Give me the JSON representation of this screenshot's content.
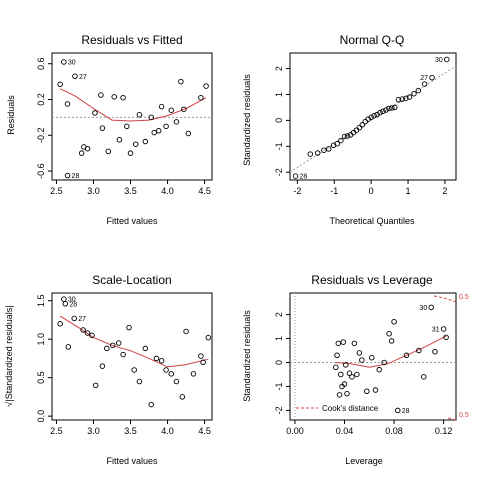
{
  "chart_data": [
    {
      "type": "scatter",
      "title": "Residuals vs Fitted",
      "xlabel": "Fitted values",
      "ylabel": "Residuals",
      "xlim": [
        2.44,
        4.6
      ],
      "ylim": [
        -0.7,
        0.72
      ],
      "xticks": [
        2.5,
        3.0,
        3.5,
        4.0,
        4.5
      ],
      "xtick_labels": [
        "2.5",
        "3.0",
        "3.5",
        "4.0",
        "4.5"
      ],
      "yticks": [
        -0.6,
        -0.2,
        0.2,
        0.6
      ],
      "ytick_labels": [
        "-0.6",
        "-0.2",
        "0.2",
        "0.6"
      ],
      "ref_line": 0,
      "points": [
        {
          "x": 2.55,
          "y": 0.37
        },
        {
          "x": 2.6,
          "y": 0.62,
          "label": "30"
        },
        {
          "x": 2.65,
          "y": 0.15
        },
        {
          "x": 2.65,
          "y": -0.65,
          "label": "28"
        },
        {
          "x": 2.75,
          "y": 0.46,
          "label": "27"
        },
        {
          "x": 2.84,
          "y": -0.4
        },
        {
          "x": 2.87,
          "y": -0.33
        },
        {
          "x": 2.92,
          "y": -0.35
        },
        {
          "x": 3.02,
          "y": 0.05
        },
        {
          "x": 3.1,
          "y": 0.25
        },
        {
          "x": 3.12,
          "y": -0.12
        },
        {
          "x": 3.2,
          "y": -0.38
        },
        {
          "x": 3.28,
          "y": 0.23
        },
        {
          "x": 3.35,
          "y": -0.25
        },
        {
          "x": 3.4,
          "y": 0.22
        },
        {
          "x": 3.45,
          "y": -0.1
        },
        {
          "x": 3.5,
          "y": -0.4
        },
        {
          "x": 3.57,
          "y": -0.3
        },
        {
          "x": 3.62,
          "y": 0.03
        },
        {
          "x": 3.7,
          "y": -0.27
        },
        {
          "x": 3.78,
          "y": 0.0
        },
        {
          "x": 3.82,
          "y": -0.17
        },
        {
          "x": 3.88,
          "y": -0.15
        },
        {
          "x": 3.92,
          "y": 0.12
        },
        {
          "x": 3.98,
          "y": -0.1
        },
        {
          "x": 4.05,
          "y": 0.08
        },
        {
          "x": 4.12,
          "y": -0.05
        },
        {
          "x": 4.18,
          "y": 0.4
        },
        {
          "x": 4.22,
          "y": 0.09
        },
        {
          "x": 4.28,
          "y": -0.18
        },
        {
          "x": 4.45,
          "y": 0.22
        },
        {
          "x": 4.52,
          "y": 0.35
        }
      ],
      "smooth": [
        [
          2.55,
          0.32
        ],
        [
          2.75,
          0.24
        ],
        [
          3.0,
          0.1
        ],
        [
          3.25,
          -0.03
        ],
        [
          3.5,
          -0.04
        ],
        [
          3.75,
          -0.03
        ],
        [
          4.0,
          0.02
        ],
        [
          4.25,
          0.1
        ],
        [
          4.52,
          0.22
        ]
      ]
    },
    {
      "type": "scatter",
      "title": "Normal Q-Q",
      "xlabel": "Theoretical Quantiles",
      "ylabel": "Standardized residuals",
      "xlim": [
        -2.2,
        2.3
      ],
      "ylim": [
        -2.3,
        2.6
      ],
      "xticks": [
        -2,
        -1,
        0,
        1,
        2
      ],
      "xtick_labels": [
        "-2",
        "-1",
        "0",
        "1",
        "2"
      ],
      "yticks": [
        -2,
        -1,
        0,
        1,
        2
      ],
      "ytick_labels": [
        "-2",
        "-1",
        "0",
        "1",
        "2"
      ],
      "ref_line_points": [
        [
          -2.2,
          -2.0
        ],
        [
          2.3,
          2.1
        ]
      ],
      "points": [
        {
          "x": -2.05,
          "y": -2.15,
          "label": "28"
        },
        {
          "x": -1.65,
          "y": -1.3
        },
        {
          "x": -1.45,
          "y": -1.26
        },
        {
          "x": -1.28,
          "y": -1.15
        },
        {
          "x": -1.15,
          "y": -1.1
        },
        {
          "x": -1.02,
          "y": -0.96
        },
        {
          "x": -0.92,
          "y": -0.9
        },
        {
          "x": -0.82,
          "y": -0.78
        },
        {
          "x": -0.72,
          "y": -0.62
        },
        {
          "x": -0.64,
          "y": -0.6
        },
        {
          "x": -0.56,
          "y": -0.56
        },
        {
          "x": -0.48,
          "y": -0.47
        },
        {
          "x": -0.4,
          "y": -0.38
        },
        {
          "x": -0.32,
          "y": -0.28
        },
        {
          "x": -0.24,
          "y": -0.17
        },
        {
          "x": -0.16,
          "y": -0.05
        },
        {
          "x": -0.08,
          "y": 0.05
        },
        {
          "x": 0.0,
          "y": 0.12
        },
        {
          "x": 0.08,
          "y": 0.18
        },
        {
          "x": 0.16,
          "y": 0.22
        },
        {
          "x": 0.24,
          "y": 0.3
        },
        {
          "x": 0.32,
          "y": 0.35
        },
        {
          "x": 0.4,
          "y": 0.4
        },
        {
          "x": 0.48,
          "y": 0.46
        },
        {
          "x": 0.56,
          "y": 0.48
        },
        {
          "x": 0.64,
          "y": 0.5
        },
        {
          "x": 0.74,
          "y": 0.8
        },
        {
          "x": 0.84,
          "y": 0.82
        },
        {
          "x": 0.94,
          "y": 0.85
        },
        {
          "x": 1.04,
          "y": 0.9
        },
        {
          "x": 1.16,
          "y": 1.03
        },
        {
          "x": 1.28,
          "y": 1.15
        },
        {
          "x": 1.45,
          "y": 1.4
        },
        {
          "x": 1.65,
          "y": 1.65,
          "label": "27"
        },
        {
          "x": 2.05,
          "y": 2.35,
          "label": "30"
        }
      ]
    },
    {
      "type": "scatter",
      "title": "Scale-Location",
      "xlabel": "Fitted values",
      "ylabel": "√|Standardized residuals|",
      "xlim": [
        2.44,
        4.6
      ],
      "ylim": [
        -0.05,
        1.6
      ],
      "xticks": [
        2.5,
        3.0,
        3.5,
        4.0,
        4.5
      ],
      "xtick_labels": [
        "2.5",
        "3.0",
        "3.5",
        "4.0",
        "4.5"
      ],
      "yticks": [
        0.0,
        0.5,
        1.0,
        1.5
      ],
      "ytick_labels": [
        "0.0",
        "0.5",
        "1.0",
        "1.5"
      ],
      "points": [
        {
          "x": 2.55,
          "y": 1.2
        },
        {
          "x": 2.6,
          "y": 1.52,
          "label": "30"
        },
        {
          "x": 2.62,
          "y": 1.46,
          "label": "28"
        },
        {
          "x": 2.66,
          "y": 0.9
        },
        {
          "x": 2.74,
          "y": 1.27,
          "label": "27"
        },
        {
          "x": 2.86,
          "y": 1.12
        },
        {
          "x": 2.92,
          "y": 1.08
        },
        {
          "x": 2.98,
          "y": 1.05
        },
        {
          "x": 3.03,
          "y": 0.4
        },
        {
          "x": 3.12,
          "y": 0.65
        },
        {
          "x": 3.18,
          "y": 0.88
        },
        {
          "x": 3.26,
          "y": 0.92
        },
        {
          "x": 3.34,
          "y": 0.95
        },
        {
          "x": 3.4,
          "y": 0.8
        },
        {
          "x": 3.48,
          "y": 1.15
        },
        {
          "x": 3.55,
          "y": 0.6
        },
        {
          "x": 3.62,
          "y": 0.45
        },
        {
          "x": 3.7,
          "y": 0.88
        },
        {
          "x": 3.78,
          "y": 0.15
        },
        {
          "x": 3.85,
          "y": 0.75
        },
        {
          "x": 3.92,
          "y": 0.72
        },
        {
          "x": 3.98,
          "y": 0.6
        },
        {
          "x": 4.05,
          "y": 0.55
        },
        {
          "x": 4.12,
          "y": 0.45
        },
        {
          "x": 4.2,
          "y": 0.25
        },
        {
          "x": 4.25,
          "y": 1.1
        },
        {
          "x": 4.35,
          "y": 0.55
        },
        {
          "x": 4.45,
          "y": 0.78
        },
        {
          "x": 4.48,
          "y": 0.7
        },
        {
          "x": 4.55,
          "y": 1.02
        }
      ],
      "smooth": [
        [
          2.55,
          1.3
        ],
        [
          2.8,
          1.15
        ],
        [
          3.0,
          1.02
        ],
        [
          3.25,
          0.92
        ],
        [
          3.5,
          0.85
        ],
        [
          3.75,
          0.75
        ],
        [
          4.0,
          0.64
        ],
        [
          4.25,
          0.67
        ],
        [
          4.55,
          0.74
        ]
      ]
    },
    {
      "type": "scatter",
      "title": "Residuals vs Leverage",
      "xlabel": "Leverage",
      "ylabel": "Standardized residuals",
      "xlim": [
        -0.004,
        0.13
      ],
      "ylim": [
        -2.4,
        2.9
      ],
      "xticks": [
        0.0,
        0.04,
        0.08,
        0.12
      ],
      "xtick_labels": [
        "0.00",
        "0.04",
        "0.08",
        "0.12"
      ],
      "yticks": [
        -2,
        -1,
        0,
        1,
        2
      ],
      "ytick_labels": [
        "-2",
        "-1",
        "0",
        "1",
        "2"
      ],
      "ref_line": 0,
      "points": [
        {
          "x": 0.033,
          "y": -0.2
        },
        {
          "x": 0.034,
          "y": 0.3
        },
        {
          "x": 0.035,
          "y": 0.8
        },
        {
          "x": 0.036,
          "y": -1.35
        },
        {
          "x": 0.037,
          "y": -0.5
        },
        {
          "x": 0.038,
          "y": -1.0
        },
        {
          "x": 0.039,
          "y": 0.85
        },
        {
          "x": 0.04,
          "y": -0.9
        },
        {
          "x": 0.041,
          "y": -0.1
        },
        {
          "x": 0.042,
          "y": -1.3
        },
        {
          "x": 0.044,
          "y": -0.45
        },
        {
          "x": 0.046,
          "y": -0.6
        },
        {
          "x": 0.048,
          "y": 0.8
        },
        {
          "x": 0.05,
          "y": -0.5
        },
        {
          "x": 0.052,
          "y": 0.4
        },
        {
          "x": 0.054,
          "y": 0.1
        },
        {
          "x": 0.058,
          "y": -1.2
        },
        {
          "x": 0.062,
          "y": 0.2
        },
        {
          "x": 0.065,
          "y": -1.15
        },
        {
          "x": 0.068,
          "y": -0.3
        },
        {
          "x": 0.072,
          "y": 0.0
        },
        {
          "x": 0.076,
          "y": 1.2
        },
        {
          "x": 0.078,
          "y": 0.9
        },
        {
          "x": 0.08,
          "y": 1.7
        },
        {
          "x": 0.083,
          "y": -2.0,
          "label": "28"
        },
        {
          "x": 0.09,
          "y": 0.3
        },
        {
          "x": 0.1,
          "y": 0.5
        },
        {
          "x": 0.104,
          "y": -0.6
        },
        {
          "x": 0.11,
          "y": 2.3,
          "label": "30"
        },
        {
          "x": 0.113,
          "y": 0.45
        },
        {
          "x": 0.12,
          "y": 1.4,
          "label": "31"
        },
        {
          "x": 0.122,
          "y": 1.05
        }
      ],
      "smooth": [
        [
          0.033,
          0.0
        ],
        [
          0.045,
          -0.05
        ],
        [
          0.06,
          -0.2
        ],
        [
          0.075,
          -0.05
        ],
        [
          0.09,
          0.3
        ],
        [
          0.105,
          0.65
        ],
        [
          0.122,
          1.1
        ]
      ],
      "cooks_distance": {
        "legend": "Cook's distance",
        "legend_position": "bottom-left",
        "contour_labels": [
          "0.5",
          "0.5"
        ]
      }
    }
  ]
}
